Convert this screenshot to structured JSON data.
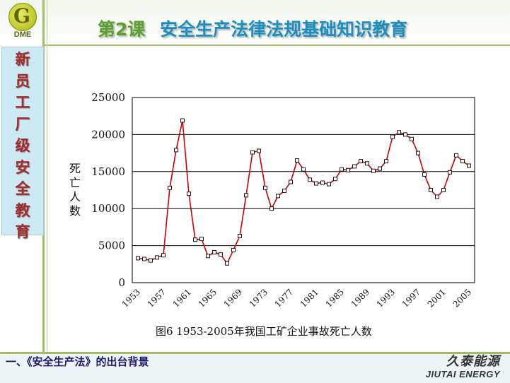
{
  "header": {
    "logo_glyph": "G",
    "logo_text": "DME",
    "lesson": "第2课",
    "title": "安全生产法律法规基础知识教育"
  },
  "sidebar": {
    "chars": [
      "新",
      "员",
      "工",
      "厂",
      "级",
      "安",
      "全",
      "教",
      "育"
    ]
  },
  "footer": {
    "section": "一、《安全生产法》的出台背景",
    "brand_cn": "久泰能源",
    "brand_en": "JIUTAI ENERGY"
  },
  "colors": {
    "line": "#cc0000",
    "marker_fill": "#ffffff",
    "grid": "#000000",
    "title_lesson": "#5aa02c",
    "title_main": "#1b8ec0"
  },
  "chart_data": {
    "type": "line",
    "caption": "图6  1953-2005年我国工矿企业事故死亡人数",
    "ylabel": "死亡人数",
    "ylabel_chars": [
      "死",
      "亡",
      "人",
      "数"
    ],
    "xlabel": "",
    "ylim": [
      0,
      25000
    ],
    "yticks": [
      0,
      5000,
      10000,
      15000,
      20000,
      25000
    ],
    "ytick_labels": [
      "0",
      "5000",
      "10000",
      "15000",
      "20000",
      "25000"
    ],
    "xtick_labels": [
      "1953",
      "1957",
      "1961",
      "1965",
      "1969",
      "1973",
      "1977",
      "1981",
      "1985",
      "1989",
      "1993",
      "1997",
      "2001",
      "2005"
    ],
    "grid": true,
    "x": [
      1953,
      1954,
      1955,
      1956,
      1957,
      1958,
      1959,
      1960,
      1961,
      1962,
      1963,
      1964,
      1965,
      1966,
      1967,
      1968,
      1969,
      1970,
      1971,
      1972,
      1973,
      1974,
      1975,
      1976,
      1977,
      1978,
      1979,
      1980,
      1981,
      1982,
      1983,
      1984,
      1985,
      1986,
      1987,
      1988,
      1989,
      1990,
      1991,
      1992,
      1993,
      1994,
      1995,
      1996,
      1997,
      1998,
      1999,
      2000,
      2001,
      2002,
      2003,
      2004,
      2005
    ],
    "series": [
      {
        "values": [
          3300,
          3200,
          3000,
          3400,
          3700,
          12800,
          17900,
          21900,
          12000,
          5800,
          5900,
          3600,
          4100,
          3800,
          2600,
          4400,
          6300,
          11800,
          17600,
          17800,
          12800,
          10000,
          11700,
          12400,
          13600,
          16500,
          15300,
          13900,
          13400,
          13500,
          13300,
          14000,
          15300,
          15200,
          15700,
          16400,
          16100,
          15100,
          15400,
          16400,
          19700,
          20300,
          20000,
          19400,
          17500,
          14600,
          12500,
          11600,
          12500,
          14900,
          17200,
          16400,
          15800
        ]
      }
    ]
  }
}
